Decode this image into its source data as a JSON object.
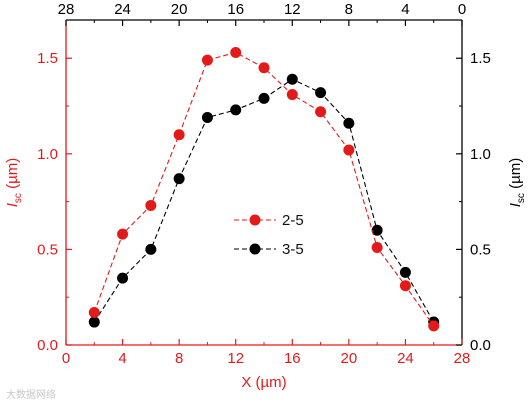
{
  "chart_data": {
    "type": "line",
    "x": [
      2,
      4,
      6,
      8,
      10,
      12,
      14,
      16,
      18,
      20,
      22,
      24,
      26
    ],
    "series": [
      {
        "name": "2-5",
        "color": "#e31a1a",
        "values": [
          0.17,
          0.58,
          0.73,
          1.1,
          1.49,
          1.53,
          1.45,
          1.31,
          1.22,
          1.02,
          0.51,
          0.31,
          0.1
        ]
      },
      {
        "name": "3-5",
        "color": "#000000",
        "values": [
          0.12,
          0.35,
          0.5,
          0.87,
          1.19,
          1.23,
          1.29,
          1.39,
          1.32,
          1.16,
          0.6,
          0.38,
          0.12
        ]
      }
    ],
    "xlabel": "X (µm)",
    "ylabel_left": {
      "main": "I",
      "sub": "sc",
      "unit": " (µm)"
    },
    "ylabel_right": {
      "main": "I",
      "sub": "sc",
      "unit": " (µm)"
    },
    "xlim": [
      0,
      28
    ],
    "ylim": [
      0,
      1.7
    ],
    "x_ticks": [
      "0",
      "4",
      "8",
      "12",
      "16",
      "20",
      "24",
      "28"
    ],
    "top_ticks": [
      "28",
      "24",
      "20",
      "16",
      "12",
      "8",
      "4",
      "0"
    ],
    "y_ticks_left": [
      "0.0",
      "0.5",
      "1.0",
      "1.5"
    ],
    "y_ticks_right": [
      "0.0",
      "0.5",
      "1.0",
      "1.5"
    ],
    "left_axis_color": "#e31a1a",
    "right_axis_color": "#000000",
    "line_style": "dashed",
    "legend_position": "center",
    "grid": false
  },
  "watermark": "大数据网络"
}
